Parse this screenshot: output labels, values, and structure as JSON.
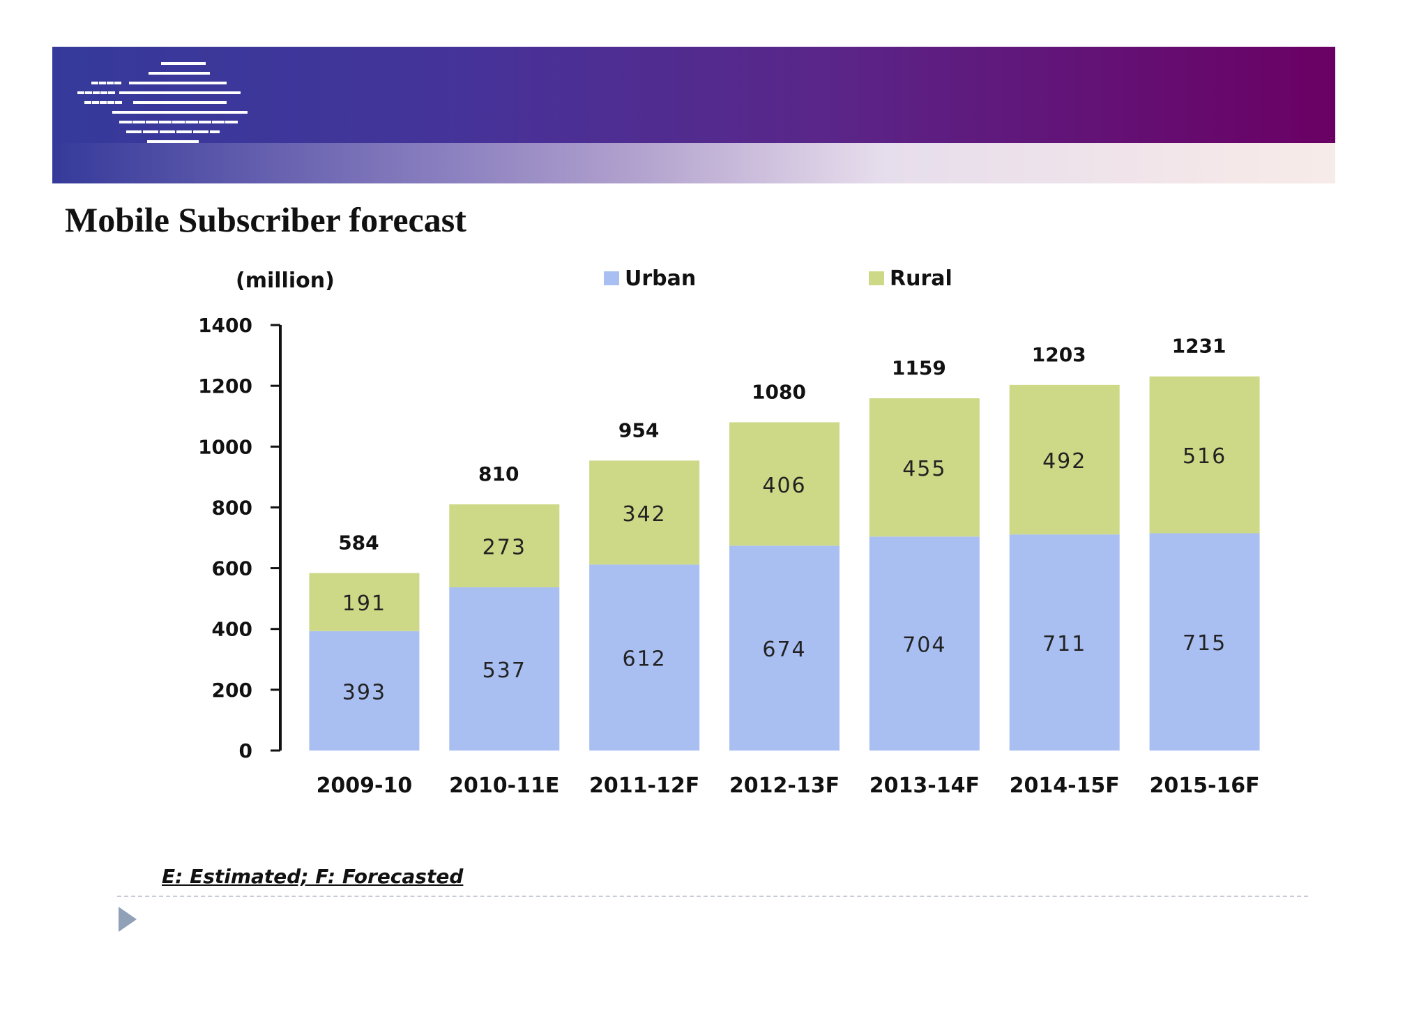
{
  "slide": {
    "title": "Mobile Subscriber forecast",
    "footnote": "E: Estimated; F: Forecasted"
  },
  "colors": {
    "urban": "#a9bff2",
    "rural": "#cdd986",
    "banner_left": "#353a9a",
    "banner_right": "#6b0064",
    "bullet": "#8fa0b7"
  },
  "chart_data": {
    "type": "bar",
    "stacked": true,
    "unit_label": "(million)",
    "categories": [
      "2009-10",
      "2010-11E",
      "2011-12F",
      "2012-13F",
      "2013-14F",
      "2014-15F",
      "2015-16F"
    ],
    "series": [
      {
        "name": "Urban",
        "values": [
          393,
          537,
          612,
          674,
          704,
          711,
          715
        ]
      },
      {
        "name": "Rural",
        "values": [
          191,
          273,
          342,
          406,
          455,
          492,
          516
        ]
      }
    ],
    "totals": [
      584,
      810,
      954,
      1080,
      1159,
      1203,
      1231
    ],
    "ylim": [
      0,
      1400
    ],
    "yticks": [
      0,
      200,
      400,
      600,
      800,
      1000,
      1200,
      1400
    ],
    "legend_position": "top",
    "grid": false
  }
}
